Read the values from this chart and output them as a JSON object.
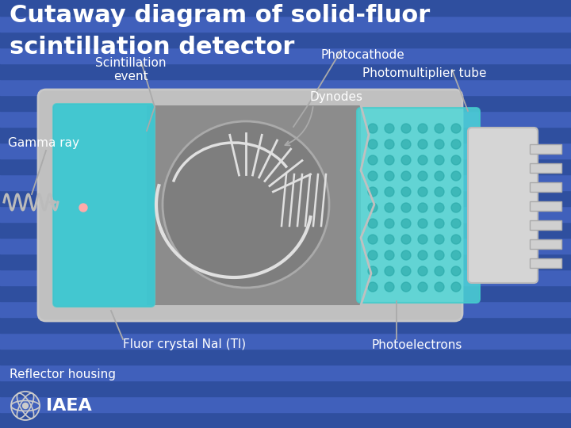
{
  "title_line1": "Cutaway diagram of solid-fluor",
  "title_line2": "scintillation detector",
  "labels": {
    "photocathode": "Photocathode",
    "scintillation": "Scintillation\nevent",
    "gamma_ray": "Gamma ray",
    "photomultiplier": "Photomultiplier tube",
    "dynodes": "Dynodes",
    "fluor_crystal": "Fluor crystal NaI (Tl)",
    "photoelectrons": "Photoelectrons",
    "reflector": "Reflector housing",
    "iaea": "IAEA"
  },
  "colors": {
    "title_text": "#ffffff",
    "label_text": "#ffffff",
    "bg_dark": "#2f4f9f",
    "bg_mid": "#3a5cb8",
    "bg_stripe": "#4060bb",
    "cyan_fill": "#4dd9d9",
    "cyan_hatch": "#33bbcc",
    "gray_body": "#8c8c8c",
    "light_gray": "#c8c8c8",
    "housing_gray": "#c0c0c0",
    "connector_line": "#aaaaaa",
    "white_detail": "#e0e0e0",
    "pin_color": "#d0d0d0"
  }
}
